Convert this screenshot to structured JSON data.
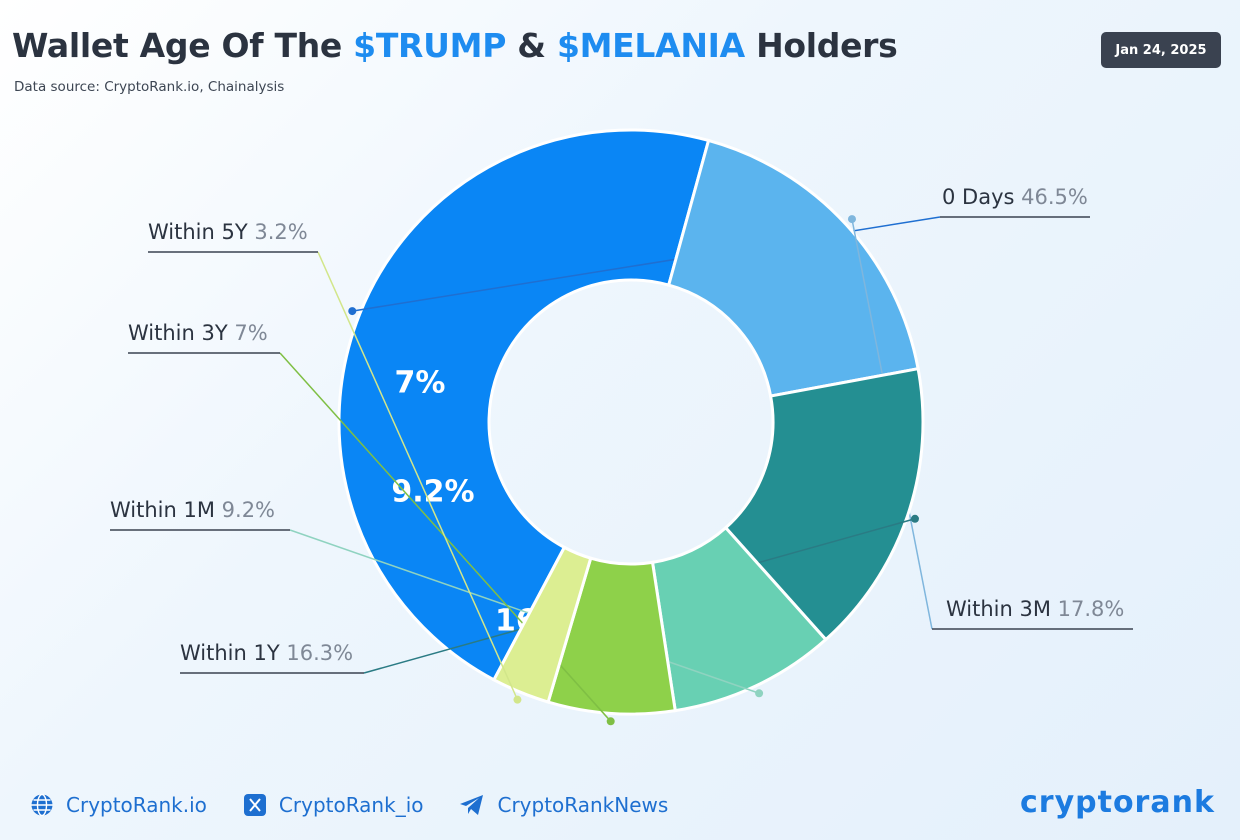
{
  "header": {
    "title_part1": "Wallet Age Of The ",
    "title_accent1": "$TRUMP",
    "title_part2": " & ",
    "title_accent2": "$MELANIA",
    "title_part3": " Holders",
    "subtitle": "Data source: CryptoRank.io, Chainalysis",
    "date": "Jan 24, 2025"
  },
  "chart_data": {
    "type": "pie",
    "donut": true,
    "legend_placement": "callouts around chart",
    "slices": [
      {
        "label": "0 Days",
        "value": 46.5,
        "display": "46.5%",
        "color": "#0a86f5",
        "callout_side": "right"
      },
      {
        "label": "Within 3M",
        "value": 17.8,
        "display": "17.8%",
        "color": "#5bb4ee",
        "callout_side": "right"
      },
      {
        "label": "Within 1Y",
        "value": 16.3,
        "display": "16.3%",
        "color": "#248f92",
        "callout_side": "left"
      },
      {
        "label": "Within 1M",
        "value": 9.2,
        "display": "9.2%",
        "color": "#68d0b3",
        "callout_side": "left"
      },
      {
        "label": "Within 3Y",
        "value": 7,
        "display": "7%",
        "color": "#8ed14a",
        "callout_side": "left"
      },
      {
        "label": "Within 5Y",
        "value": 3.2,
        "display": "3.2%",
        "color": "#dcee92",
        "callout_side": "left"
      }
    ]
  },
  "footer": {
    "links": [
      {
        "icon": "globe-icon",
        "label": "CryptoRank.io"
      },
      {
        "icon": "x-icon",
        "label": "CryptoRank_io"
      },
      {
        "icon": "telegram-icon",
        "label": "CryptoRankNews"
      }
    ],
    "logo": "cryptorank"
  }
}
